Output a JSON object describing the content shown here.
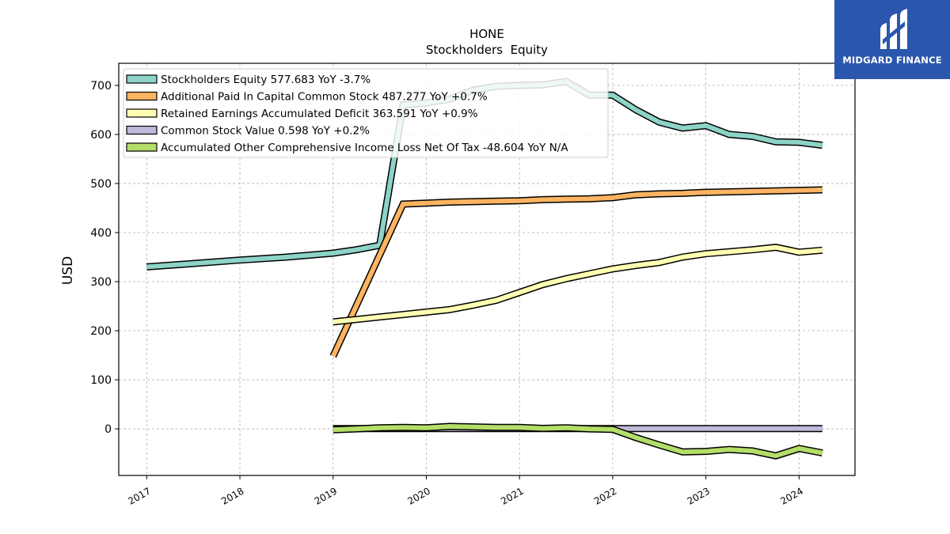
{
  "chart_data": {
    "type": "line",
    "title": "HONE",
    "subtitle": "Stockholders  Equity",
    "xlabel": "",
    "ylabel": "USD",
    "xlim": [
      2016.7,
      2024.6
    ],
    "ylim": [
      -95,
      745
    ],
    "x_ticks": [
      "2017",
      "2018",
      "2019",
      "2020",
      "2021",
      "2022",
      "2023",
      "2024"
    ],
    "y_ticks": [
      0,
      100,
      200,
      300,
      400,
      500,
      600,
      700
    ],
    "grid": true,
    "legend_position": "top-left",
    "series": [
      {
        "name": "Stockholders Equity",
        "legend": "Stockholders Equity  577.683 YoY -3.7%",
        "color": "#8dd3c7",
        "x": [
          2017.0,
          2017.5,
          2018.0,
          2018.5,
          2019.0,
          2019.25,
          2019.5,
          2019.75,
          2020.0,
          2020.25,
          2020.5,
          2020.75,
          2021.0,
          2021.25,
          2021.5,
          2021.75,
          2022.0,
          2022.25,
          2022.5,
          2022.75,
          2023.0,
          2023.25,
          2023.5,
          2023.75,
          2024.0,
          2024.25
        ],
        "values": [
          330,
          337,
          344,
          350,
          358,
          365,
          374,
          660,
          664,
          672,
          690,
          698,
          700,
          701,
          708,
          680,
          680,
          650,
          625,
          613,
          618,
          600,
          596,
          585,
          584,
          578
        ]
      },
      {
        "name": "Additional Paid In Capital Common Stock",
        "legend": "Additional Paid In Capital Common Stock  487.277 YoY +0.7%",
        "color": "#fdb462",
        "x": [
          2019.0,
          2019.75,
          2020.0,
          2020.25,
          2020.5,
          2020.75,
          2021.0,
          2021.25,
          2021.5,
          2021.75,
          2022.0,
          2022.25,
          2022.5,
          2022.75,
          2023.0,
          2023.25,
          2023.5,
          2023.75,
          2024.0,
          2024.25
        ],
        "values": [
          148,
          458,
          460,
          462,
          463,
          464,
          465,
          467,
          468,
          469,
          471,
          477,
          479,
          480,
          482,
          483,
          484,
          485,
          486,
          487
        ]
      },
      {
        "name": "Retained Earnings Accumulated Deficit",
        "legend": "Retained Earnings Accumulated Deficit  363.591 YoY +0.9%",
        "color": "#ffffb3",
        "x": [
          2019.0,
          2019.25,
          2019.5,
          2019.75,
          2020.0,
          2020.25,
          2020.5,
          2020.75,
          2021.0,
          2021.25,
          2021.5,
          2021.75,
          2022.0,
          2022.25,
          2022.5,
          2022.75,
          2023.0,
          2023.25,
          2023.5,
          2023.75,
          2024.0,
          2024.25
        ],
        "values": [
          218,
          223,
          228,
          233,
          238,
          243,
          252,
          262,
          278,
          294,
          306,
          316,
          326,
          333,
          339,
          350,
          357,
          361,
          365,
          370,
          360,
          364
        ]
      },
      {
        "name": "Common Stock Value",
        "legend": "Common Stock Value  0.598 YoY +0.2%",
        "color": "#bebada",
        "x": [
          2019.0,
          2024.25
        ],
        "values": [
          0.6,
          0.6
        ]
      },
      {
        "name": "Accumulated Other Comprehensive Income Loss Net Of Tax",
        "legend": "Accumulated Other Comprehensive Income Loss Net Of Tax  -48.604 YoY N/A",
        "color": "#b3de69",
        "x": [
          2019.0,
          2019.25,
          2019.5,
          2019.75,
          2020.0,
          2020.25,
          2020.5,
          2020.75,
          2021.0,
          2021.25,
          2021.5,
          2021.75,
          2022.0,
          2022.25,
          2022.5,
          2022.75,
          2023.0,
          2023.25,
          2023.5,
          2023.75,
          2024.0,
          2024.25
        ],
        "values": [
          -2,
          0,
          2,
          3,
          2,
          5,
          4,
          3,
          3,
          1,
          2,
          0,
          -1,
          -18,
          -33,
          -47,
          -46,
          -42,
          -45,
          -55,
          -40,
          -49
        ]
      }
    ]
  },
  "logo": {
    "text": "MIDGARD FINANCE",
    "background": "#2a56ad"
  }
}
